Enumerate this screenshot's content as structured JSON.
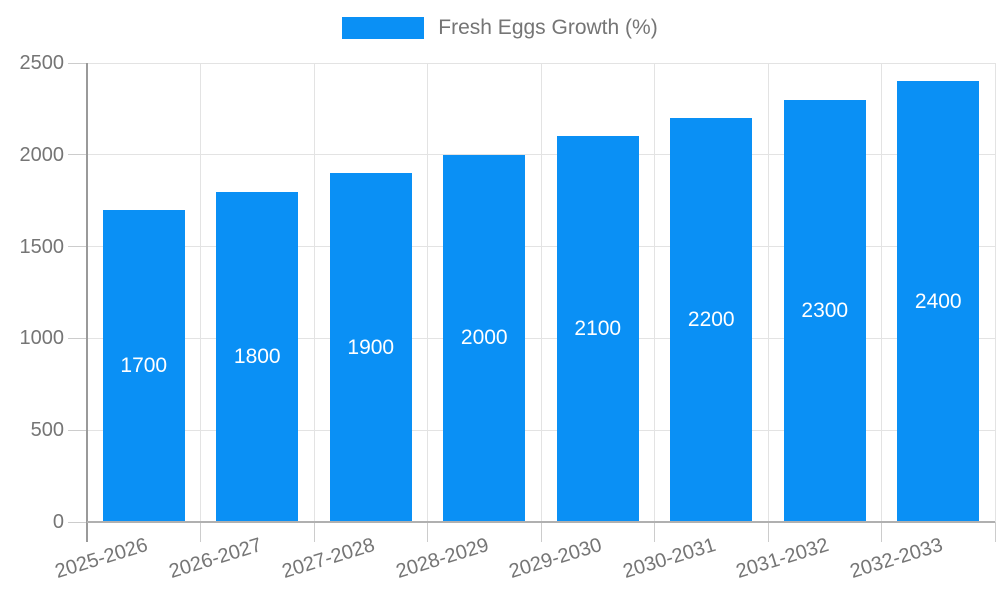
{
  "chart_data": {
    "type": "bar",
    "title": "",
    "categories": [
      "2025-2026",
      "2026-2027",
      "2027-2028",
      "2028-2029",
      "2029-2030",
      "2030-2031",
      "2031-2032",
      "2032-2033"
    ],
    "series": [
      {
        "name": "Fresh Eggs Growth (%)",
        "values": [
          1700,
          1800,
          1900,
          2000,
          2100,
          2200,
          2300,
          2400
        ]
      }
    ],
    "xlabel": "",
    "ylabel": "",
    "ylim": [
      0,
      2500
    ],
    "yticks": [
      0,
      500,
      1000,
      1500,
      2000,
      2500
    ],
    "grid": true,
    "legend_position": "top-center",
    "bar_value_labels_position": "inside-center",
    "colors": {
      "bar": "#0a90f5",
      "bar_label": "#ffffff",
      "axis_text": "#757575",
      "gridline": "#e3e3e3",
      "tick": "#cccccc",
      "axis_line": "#9a9a9a",
      "baseline": "#b0b0b0",
      "background": "#ffffff"
    }
  }
}
